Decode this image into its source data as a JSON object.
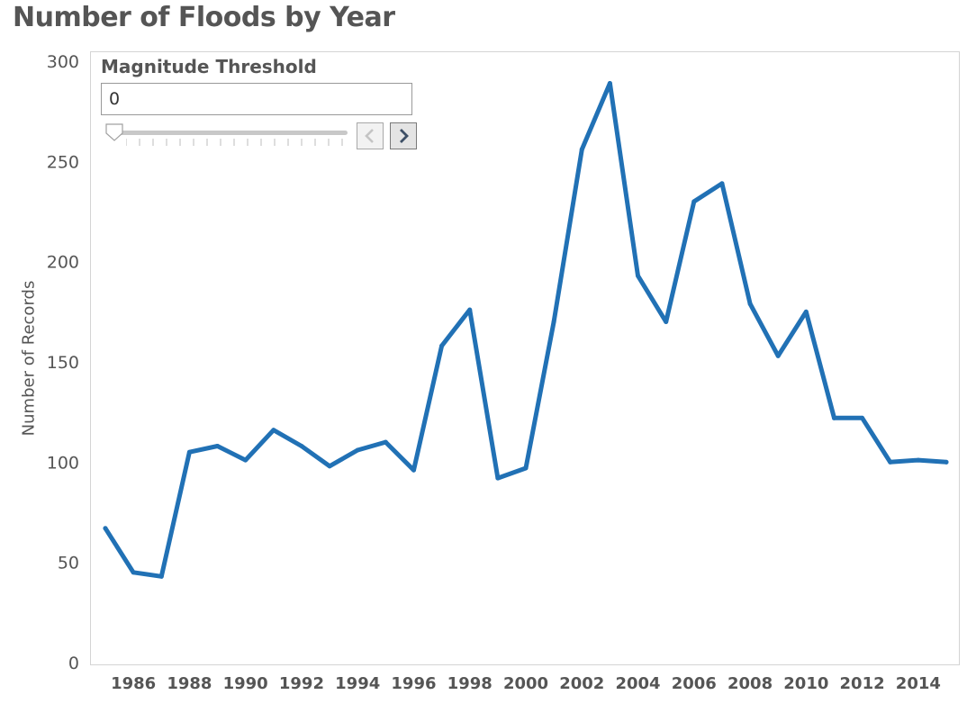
{
  "title": "Number of Floods by Year",
  "control": {
    "label": "Magnitude Threshold",
    "value": "0",
    "slider_position": 0
  },
  "chart_data": {
    "type": "line",
    "title": "Number of Floods by Year",
    "xlabel": "",
    "ylabel": "Number of Records",
    "ylim": [
      0,
      300
    ],
    "yticks": [
      0,
      50,
      100,
      150,
      200,
      250,
      300
    ],
    "xticks": [
      1986,
      1988,
      1990,
      1992,
      1994,
      1996,
      1998,
      2000,
      2002,
      2004,
      2006,
      2008,
      2010,
      2012,
      2014
    ],
    "x": [
      1985,
      1986,
      1987,
      1988,
      1989,
      1990,
      1991,
      1992,
      1993,
      1994,
      1995,
      1996,
      1997,
      1998,
      1999,
      2000,
      2001,
      2002,
      2003,
      2004,
      2005,
      2006,
      2007,
      2008,
      2009,
      2010,
      2011,
      2012,
      2013,
      2014,
      2015
    ],
    "series": [
      {
        "values": [
          67,
          45,
          43,
          105,
          108,
          101,
          116,
          108,
          98,
          106,
          110,
          96,
          158,
          176,
          92,
          97,
          170,
          256,
          289,
          193,
          170,
          230,
          239,
          179,
          153,
          175,
          122,
          122,
          100,
          101,
          100
        ],
        "color": "#2171b5"
      }
    ],
    "grid": false,
    "legend": "none"
  },
  "colors": {
    "line": "#2171b5",
    "text": "#555555",
    "border": "#d4d4d4"
  },
  "icons": {
    "prev": "chevron-left-icon",
    "next": "chevron-right-icon"
  }
}
